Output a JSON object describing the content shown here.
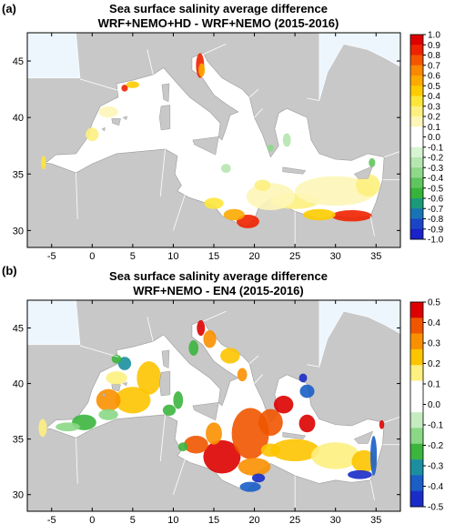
{
  "panels": [
    {
      "tag": "(a)",
      "title_line1": "Sea surface salinity average difference",
      "title_line2": "WRF+NEMO+HD - WRF+NEMO (2015-2016)",
      "colorbar": {
        "labels": [
          "1.0",
          "0.9",
          "0.8",
          "0.7",
          "0.6",
          "0.5",
          "0.4",
          "0.3",
          "0.2",
          "0.1",
          "0.0",
          "-0.1",
          "-0.2",
          "-0.3",
          "-0.4",
          "-0.5",
          "-0.6",
          "-0.7",
          "-0.8",
          "-0.9",
          "-1.0"
        ],
        "colors": [
          "#dd0000",
          "#ee2200",
          "#f55500",
          "#fa8800",
          "#fcaa00",
          "#fdcc00",
          "#fde63a",
          "#fdf080",
          "#fdf6b8",
          "#ffffff",
          "#ffffff",
          "#d6f3d2",
          "#b5e6b0",
          "#8ed88a",
          "#5fc55e",
          "#36b43a",
          "#1b9a7a",
          "#1a73b5",
          "#1a45c8",
          "#1a22c8"
        ]
      }
    },
    {
      "tag": "(b)",
      "title_line1": "Sea surface salinity average difference",
      "title_line2": "WRF+NEMO - EN4 (2015-2016)",
      "colorbar": {
        "labels": [
          "0.5",
          "0.4",
          "0.3",
          "0.2",
          "0.1",
          "0.0",
          "-0.1",
          "-0.2",
          "-0.3",
          "-0.4",
          "-0.5"
        ],
        "colors": [
          "#dd0000",
          "#f05500",
          "#fa9000",
          "#fdc400",
          "#fdef80",
          "#ffffff",
          "#ffffff",
          "#c5ecc0",
          "#8ad886",
          "#3cb53e",
          "#1b8fa0",
          "#1a5ec6",
          "#1a2cc8"
        ]
      }
    }
  ],
  "map": {
    "x_ticks": [
      "-5",
      "0",
      "5",
      "10",
      "15",
      "20",
      "25",
      "30",
      "35"
    ],
    "y_ticks": [
      "45",
      "40",
      "35",
      "30"
    ],
    "colors": {
      "land": "#c8c8c8",
      "sea_outside": "#eef6fd",
      "border": "#ffffff"
    }
  }
}
